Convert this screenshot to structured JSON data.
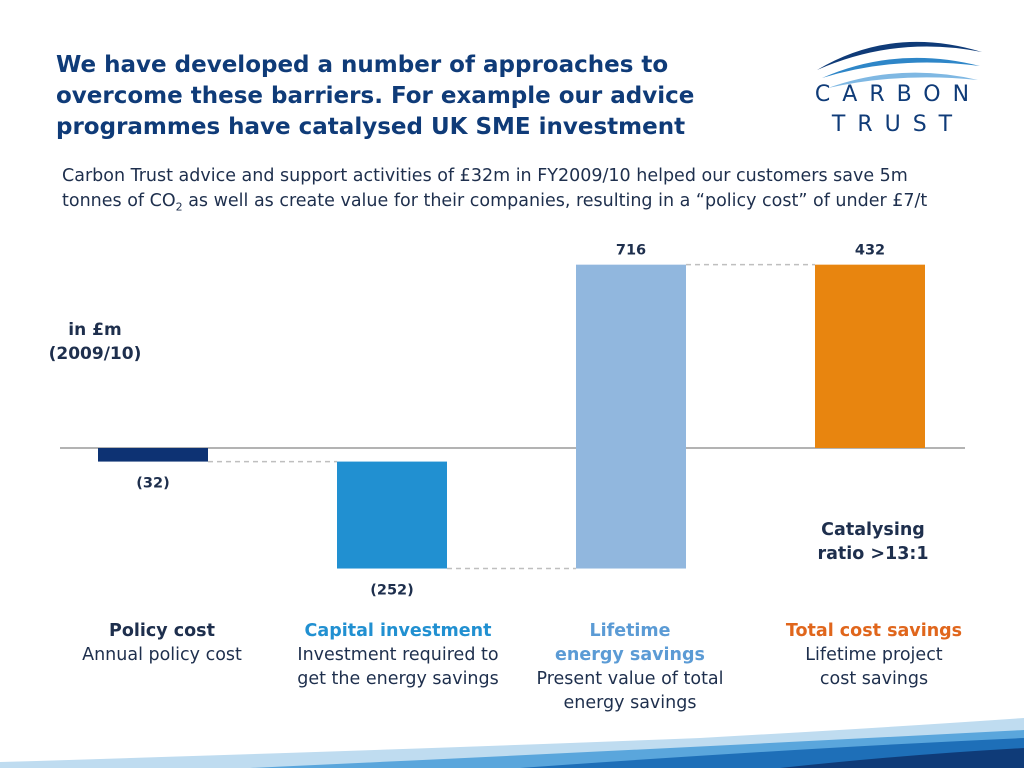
{
  "header": {
    "title_lines": [
      "We have developed a number of approaches to",
      "overcome these barriers. For example our advice",
      "programmes have catalysed UK SME investment"
    ],
    "subtitle_pre": "Carbon Trust advice and support activities of £32m in FY2009/10 helped our customers save 5m tonnes of CO",
    "subtitle_sub": "2",
    "subtitle_post": " as well as create value for their companies, resulting in a “policy cost” of under £7/t"
  },
  "logo": {
    "line1": "CARBON",
    "line2": "TRUST"
  },
  "chart_data": {
    "type": "bar",
    "subtype": "waterfall",
    "unit_label": [
      "in £m",
      "(2009/10)"
    ],
    "annotation": [
      "Catalysing",
      "ratio >13:1"
    ],
    "bars": [
      {
        "head": "Policy cost",
        "desc": [
          "Annual policy cost"
        ],
        "value": -32,
        "start": 0,
        "end": -32,
        "value_label": "(32)",
        "color": "#0d3273",
        "head_color": "#1e2f4d"
      },
      {
        "head": "Capital investment",
        "desc": [
          "Investment required to",
          "get the energy savings"
        ],
        "value": -252,
        "start": -32,
        "end": -284,
        "value_label": "(252)",
        "color": "#2190d1",
        "head_color": "#2190d1"
      },
      {
        "head": "Lifetime energy savings",
        "head_lines": [
          "Lifetime",
          "energy savings"
        ],
        "desc": [
          "Present value of total",
          "energy savings"
        ],
        "value": 716,
        "start": -284,
        "end": 432,
        "value_label": "716",
        "color": "#91b7de",
        "head_color": "#5b9bd5"
      },
      {
        "head": "Total cost savings",
        "desc": [
          "Lifetime project",
          "cost savings"
        ],
        "value": 432,
        "start": 0,
        "end": 432,
        "value_label": "432",
        "color": "#e8850f",
        "head_color": "#e0661c"
      }
    ],
    "colors": {
      "baseline": "#b3b3b3",
      "connector": "#bfbfbf",
      "label": "#1e2f4d"
    }
  }
}
